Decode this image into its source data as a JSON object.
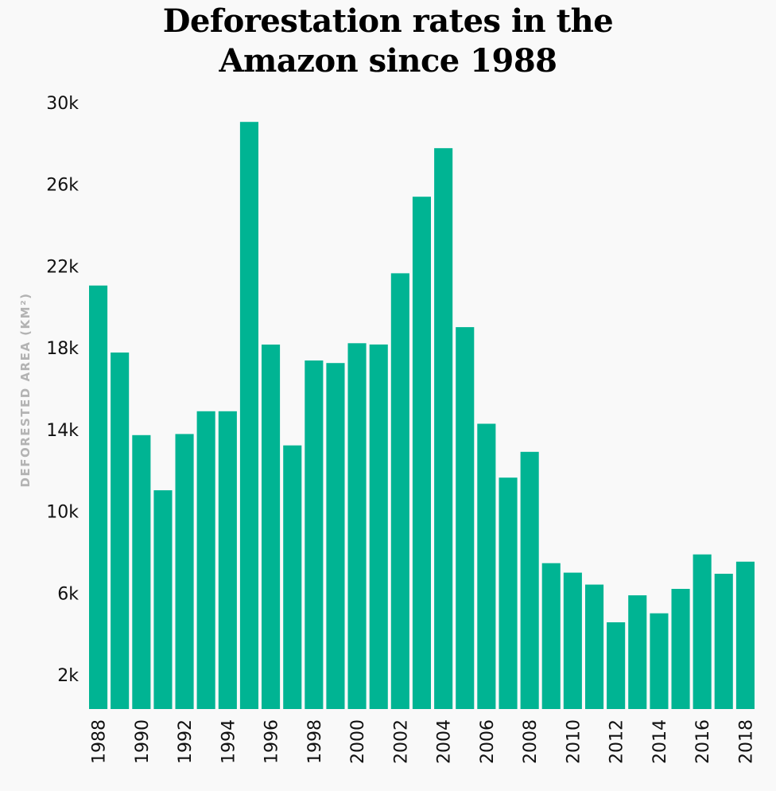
{
  "chart_data": {
    "type": "bar",
    "title_lines": [
      "Deforestation rates in the",
      "Amazon since 1988"
    ],
    "ylabel": "DEFORESTED AREA (KM²)",
    "xlabel": "",
    "bar_color": "#00b493",
    "grid": false,
    "ylim": [
      0,
      30000
    ],
    "yticks": [
      {
        "value": 30000,
        "label": "30k"
      },
      {
        "value": 26000,
        "label": "26k"
      },
      {
        "value": 22000,
        "label": "22k"
      },
      {
        "value": 18000,
        "label": "18k"
      },
      {
        "value": 14000,
        "label": "14k"
      },
      {
        "value": 10000,
        "label": "10k"
      },
      {
        "value": 6000,
        "label": "6k"
      },
      {
        "value": 2000,
        "label": "2k"
      }
    ],
    "categories": [
      "1988",
      "1989",
      "1990",
      "1991",
      "1992",
      "1993",
      "1994",
      "1995",
      "1996",
      "1997",
      "1998",
      "1999",
      "2000",
      "2001",
      "2002",
      "2003",
      "2004",
      "2005",
      "2006",
      "2007",
      "2008",
      "2009",
      "2010",
      "2011",
      "2012",
      "2013",
      "2014",
      "2015",
      "2016",
      "2017",
      "2018"
    ],
    "xtick_labels": [
      "1988",
      "1990",
      "1992",
      "1994",
      "1996",
      "1998",
      "2000",
      "2002",
      "2004",
      "2006",
      "2008",
      "2010",
      "2012",
      "2014",
      "2016",
      "2018"
    ],
    "values": [
      21050,
      17770,
      13730,
      11030,
      13786,
      14896,
      14896,
      29059,
      18161,
      13227,
      17383,
      17259,
      18226,
      18165,
      21651,
      25396,
      27772,
      19014,
      14286,
      11651,
      12911,
      7464,
      7000,
      6418,
      4571,
      5891,
      5012,
      6207,
      7893,
      6947,
      7536
    ]
  }
}
